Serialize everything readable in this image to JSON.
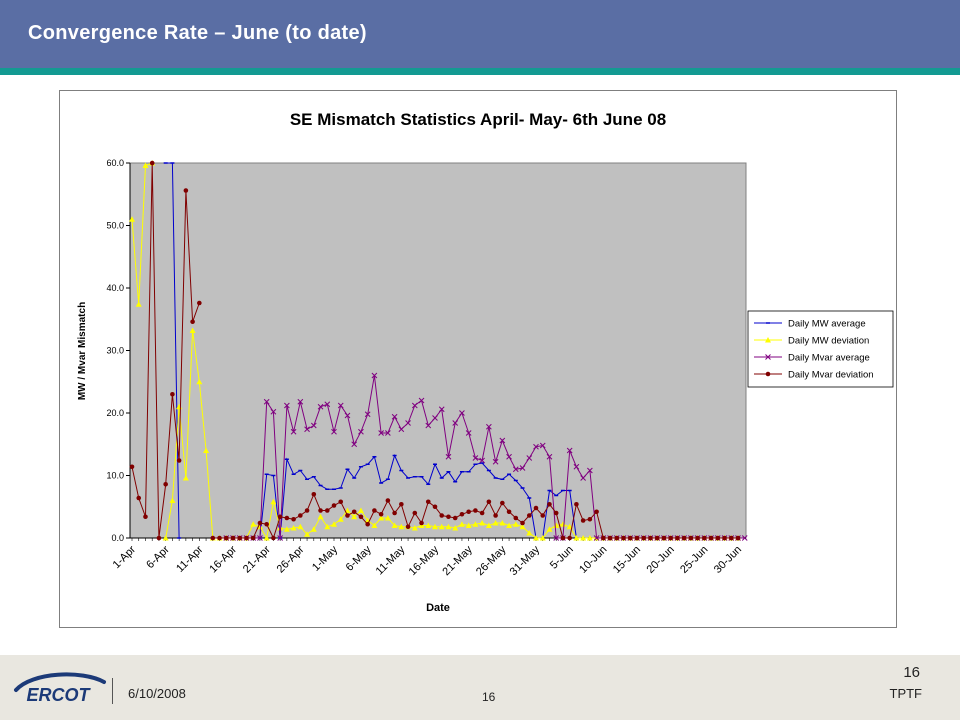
{
  "slide": {
    "title": "Convergence Rate – June (to date)",
    "footer_date": "6/10/2008",
    "footer_org": "TPTF",
    "page_number_right": "16",
    "page_number_center": "16",
    "logo_text": "ERCOT"
  },
  "colors": {
    "header": "#5a6ea4",
    "accent": "#139a92",
    "plot_bg": "#c0c0c0"
  },
  "chart_data": {
    "type": "line",
    "title": "SE Mismatch Statistics April- May- 6th June 08",
    "xlabel": "Date",
    "ylabel": "MW / Mvar Mismatch",
    "ylim": [
      0,
      60
    ],
    "yticks": [
      "0.0",
      "10.0",
      "20.0",
      "30.0",
      "40.0",
      "50.0",
      "60.0"
    ],
    "x_tick_labels": [
      "1-Apr",
      "6-Apr",
      "11-Apr",
      "16-Apr",
      "21-Apr",
      "26-Apr",
      "1-May",
      "6-May",
      "11-May",
      "16-May",
      "21-May",
      "26-May",
      "31-May",
      "5-Jun",
      "10-Jun",
      "15-Jun",
      "20-Jun",
      "25-Jun",
      "30-Jun"
    ],
    "grid": false,
    "legend_position": "right",
    "series": [
      {
        "name": "Daily MW average",
        "color": "#0000cc",
        "marker": "dash",
        "values": [
          null,
          null,
          null,
          null,
          null,
          60,
          60,
          0,
          null,
          null,
          null,
          null,
          null,
          null,
          0,
          0,
          0,
          0,
          0,
          0,
          10.2,
          10,
          0,
          12.6,
          10.2,
          10.8,
          9.4,
          9.8,
          8.4,
          7.8,
          7.8,
          8,
          11,
          9.6,
          11.4,
          11.8,
          13,
          8.8,
          9.4,
          13.2,
          10.8,
          9.6,
          9.8,
          9.8,
          8.6,
          11.8,
          9.6,
          10.6,
          9,
          10.6,
          10.6,
          11.8,
          12,
          10.8,
          9.6,
          9.4,
          10.2,
          9.2,
          8,
          6.4,
          0,
          0,
          7.6,
          6.8,
          7.6,
          7.6,
          0,
          0,
          0,
          0,
          0,
          0,
          0,
          0,
          0,
          0,
          0,
          0,
          0,
          0,
          0,
          0,
          0,
          0,
          0,
          0,
          0,
          0,
          0,
          0,
          0
        ]
      },
      {
        "name": "Daily MW deviation",
        "color": "#ffff00",
        "marker": "triangle",
        "values": [
          51,
          37.4,
          59.6,
          60,
          null,
          0,
          6,
          21,
          9.6,
          33.2,
          25,
          14,
          0,
          0,
          0,
          0,
          0,
          0,
          2.2,
          1.8,
          0,
          5.8,
          1.6,
          1.4,
          1.6,
          1.8,
          0.6,
          1.4,
          3.4,
          1.8,
          2.2,
          3,
          4.4,
          3.4,
          4.4,
          2.8,
          2,
          3.2,
          3.2,
          2,
          1.8,
          1.8,
          1.6,
          2,
          2,
          1.8,
          1.8,
          1.8,
          1.6,
          2.2,
          2,
          2.2,
          2.4,
          2,
          2.4,
          2.4,
          2,
          2.2,
          1.8,
          0.8,
          0,
          0,
          1.4,
          2,
          2.2,
          1.8,
          0,
          0,
          0,
          0,
          0,
          0,
          0,
          0,
          0,
          0,
          0,
          0,
          0,
          0,
          0,
          0,
          0,
          0,
          0,
          0,
          0,
          0,
          0,
          0,
          0
        ]
      },
      {
        "name": "Daily Mvar average",
        "color": "#800080",
        "marker": "cross",
        "values": [
          null,
          null,
          null,
          null,
          null,
          null,
          null,
          null,
          null,
          null,
          null,
          null,
          null,
          null,
          0,
          0,
          0,
          0,
          0,
          0,
          21.8,
          20.2,
          0,
          21.2,
          17,
          21.8,
          17.4,
          18,
          21,
          21.4,
          17,
          21.2,
          19.6,
          15,
          17,
          19.8,
          26,
          16.8,
          16.8,
          19.4,
          17.4,
          18.4,
          21.2,
          22,
          18,
          19.2,
          20.6,
          13,
          18.4,
          20,
          16.8,
          12.8,
          12.4,
          17.8,
          12.2,
          15.6,
          13,
          11,
          11.2,
          12.8,
          14.6,
          14.8,
          13,
          0,
          0,
          14,
          11.4,
          9.6,
          10.8,
          0,
          0,
          0,
          0,
          0,
          0,
          0,
          0,
          0,
          0,
          0,
          0,
          0,
          0,
          0,
          0,
          0,
          0,
          0,
          0,
          0,
          0,
          0
        ]
      },
      {
        "name": "Daily Mvar deviation",
        "color": "#800000",
        "marker": "circle",
        "values": [
          11.4,
          6.4,
          3.4,
          60,
          0,
          8.6,
          23,
          12.4,
          55.6,
          34.6,
          37.6,
          null,
          0,
          0,
          0,
          0,
          0,
          0,
          0,
          2.4,
          2.2,
          0,
          3.4,
          3.2,
          3,
          3.6,
          4.4,
          7,
          4.4,
          4.4,
          5.2,
          5.8,
          3.6,
          4.2,
          3.4,
          2.2,
          4.4,
          3.8,
          6,
          4,
          5.4,
          1.8,
          4,
          2.4,
          5.8,
          5,
          3.6,
          3.4,
          3.2,
          3.8,
          4.2,
          4.4,
          4,
          5.8,
          3.6,
          5.6,
          4.2,
          3.2,
          2.4,
          3.6,
          4.8,
          3.6,
          5.4,
          4,
          0,
          0,
          5.4,
          2.8,
          3,
          4.2,
          0,
          0,
          0,
          0,
          0,
          0,
          0,
          0,
          0,
          0,
          0,
          0,
          0,
          0,
          0,
          0,
          0,
          0,
          0,
          0,
          0
        ]
      }
    ]
  }
}
